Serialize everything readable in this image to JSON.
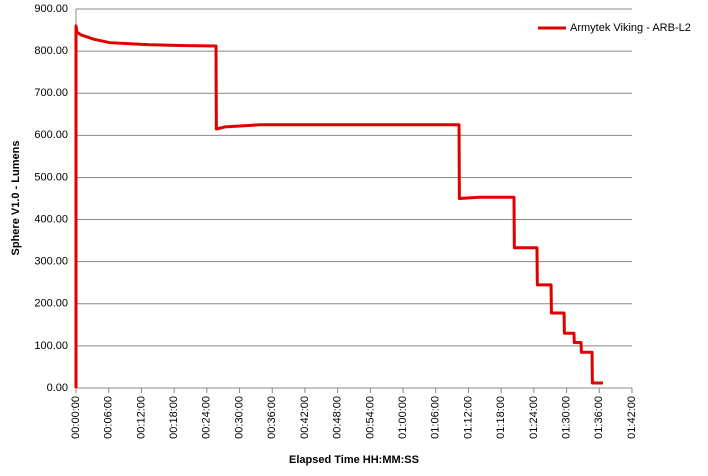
{
  "chart_data": {
    "type": "line",
    "xlabel": "Elapsed  Time HH:MM:SS",
    "ylabel": "Sphere V1.0 - Lumens",
    "legend": "top-right",
    "grid": true,
    "series": [
      {
        "name": "Armytek Viking - ARB-L2",
        "color": "#e00000",
        "x": [
          0,
          0,
          10,
          60,
          200,
          374,
          815,
          1200,
          1541,
          1545,
          1640,
          2025,
          4216,
          4220,
          4440,
          4821,
          4825,
          5074,
          5078,
          5229,
          5233,
          5372,
          5376,
          5481,
          5485,
          5559,
          5563,
          5680,
          5684,
          5800
        ],
        "values": [
          0,
          860,
          845,
          838,
          828,
          820,
          815,
          813,
          812,
          615,
          620,
          625,
          625,
          450,
          453,
          453,
          333,
          333,
          245,
          245,
          178,
          178,
          130,
          130,
          108,
          108,
          85,
          85,
          12,
          12
        ]
      }
    ],
    "xlim": [
      0,
      6120
    ],
    "xticks": [
      {
        "value": 0,
        "label": "00:00:00"
      },
      {
        "value": 360,
        "label": "00:06:00"
      },
      {
        "value": 720,
        "label": "00:12:00"
      },
      {
        "value": 1080,
        "label": "00:18:00"
      },
      {
        "value": 1440,
        "label": "00:24:00"
      },
      {
        "value": 1800,
        "label": "00:30:00"
      },
      {
        "value": 2160,
        "label": "00:36:00"
      },
      {
        "value": 2520,
        "label": "00:42:00"
      },
      {
        "value": 2880,
        "label": "00:48:00"
      },
      {
        "value": 3240,
        "label": "00:54:00"
      },
      {
        "value": 3600,
        "label": "01:00:00"
      },
      {
        "value": 3960,
        "label": "01:06:00"
      },
      {
        "value": 4320,
        "label": "01:12:00"
      },
      {
        "value": 4680,
        "label": "01:18:00"
      },
      {
        "value": 5040,
        "label": "01:24:00"
      },
      {
        "value": 5400,
        "label": "01:30:00"
      },
      {
        "value": 5760,
        "label": "01:36:00"
      },
      {
        "value": 6120,
        "label": "01:42:00"
      }
    ],
    "ylim": [
      0,
      900
    ],
    "yticks": [
      {
        "value": 0,
        "label": "0.00"
      },
      {
        "value": 100,
        "label": "100.00"
      },
      {
        "value": 200,
        "label": "200.00"
      },
      {
        "value": 300,
        "label": "300.00"
      },
      {
        "value": 400,
        "label": "400.00"
      },
      {
        "value": 500,
        "label": "500.00"
      },
      {
        "value": 600,
        "label": "600.00"
      },
      {
        "value": 700,
        "label": "700.00"
      },
      {
        "value": 800,
        "label": "800.00"
      },
      {
        "value": 900,
        "label": "900.00"
      }
    ]
  }
}
